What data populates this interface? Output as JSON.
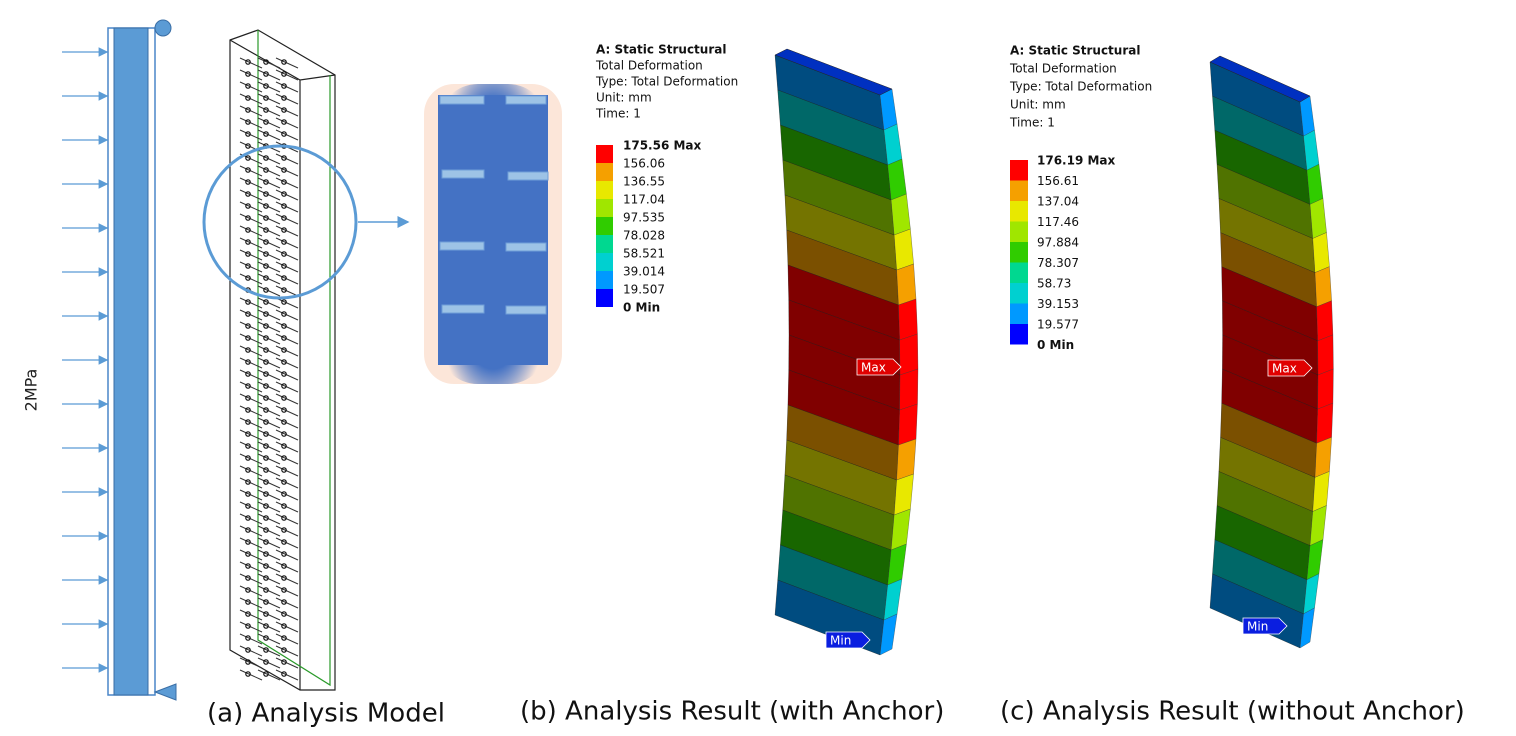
{
  "load_label": "2MPa",
  "captions": [
    "(a) Analysis Model",
    "(b)  Analysis Result (with Anchor)",
    "(c)  Analysis Result (without Anchor)"
  ],
  "legend_colors": [
    "#ff0000",
    "#f5a000",
    "#e8e800",
    "#a0e600",
    "#30cc00",
    "#00d890",
    "#00d0d0",
    "#0099ff",
    "#0000ff"
  ],
  "results": [
    {
      "header": [
        "A: Static Structural",
        "Total Deformation",
        "Type: Total Deformation",
        "Unit: mm",
        "Time: 1"
      ],
      "legend": [
        "175.56 Max",
        "156.06",
        "136.55",
        "117.04",
        "97.535",
        "78.028",
        "58.521",
        "39.014",
        "19.507",
        "0 Min"
      ],
      "max_tag": "Max",
      "min_tag": "Min"
    },
    {
      "header": [
        "A: Static Structural",
        "Total Deformation",
        "Type: Total Deformation",
        "Unit: mm",
        "Time: 1"
      ],
      "legend": [
        "176.19 Max",
        "156.61",
        "137.04",
        "117.46",
        "97.884",
        "78.307",
        "58.73",
        "39.153",
        "19.577",
        "0 Min"
      ],
      "max_tag": "Max",
      "min_tag": "Min"
    }
  ]
}
